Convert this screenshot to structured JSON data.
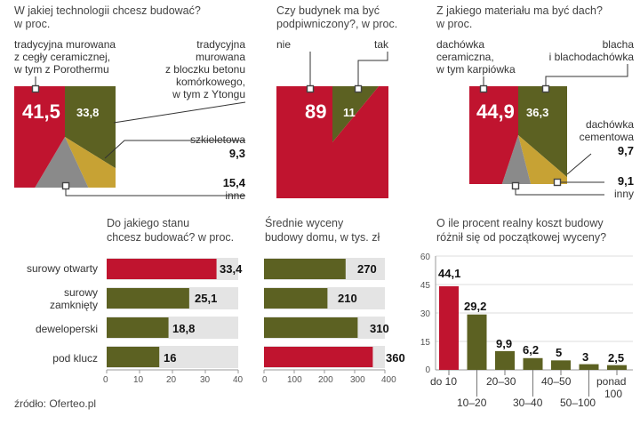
{
  "colors": {
    "red": "#c0142f",
    "olive": "#5c6122",
    "gold": "#c7a234",
    "gray": "#8a8a8a",
    "panel": "#e4e4e4",
    "line": "#333333"
  },
  "pie1": {
    "title": "W jakiej technologii chcesz budować? w proc.",
    "title_l1": "W jakiej technologii chcesz budować?",
    "title_l2": "w proc.",
    "cat1_l1": "tradycyjna murowana",
    "cat1_l2": "z cegły ceramicznej,",
    "cat1_l3": "w tym z Porothermu",
    "cat1_value": "41,5",
    "cat2_l1": "tradycyjna",
    "cat2_l2": "murowana",
    "cat2_l3": "z bloczku betonu",
    "cat2_l4": "komórkowego,",
    "cat2_l5": "w tym z Ytongu",
    "cat2_value": "33,8",
    "cat3_label": "szkieletowa",
    "cat3_value": "9,3",
    "cat4_value": "15,4",
    "cat4_label": "inne"
  },
  "pie2": {
    "title_l1": "Czy budynek ma być",
    "title_l2": "podpiwniczony?, w proc.",
    "no_label": "nie",
    "no_value": "89",
    "yes_label": "tak",
    "yes_value": "11"
  },
  "pie3": {
    "title_l1": "Z jakiego materiału ma być dach?",
    "title_l2": "w proc.",
    "cat1_l1": "dachówka",
    "cat1_l2": "ceramiczna,",
    "cat1_l3": "w tym karpiówka",
    "cat1_value": "44,9",
    "cat2_l1": "blacha",
    "cat2_l2": "i blachodachówka",
    "cat2_value": "36,3",
    "cat3_l1": "dachówka",
    "cat3_l2": "cementowa",
    "cat3_value": "9,7",
    "cat4_value": "9,1",
    "cat4_label": "inny"
  },
  "bars1": {
    "title_l1": "Do jakiego stanu",
    "title_l2": "chcesz budować? w proc.",
    "cat1": "surowy otwarty",
    "cat2_l1": "surowy",
    "cat2_l2": "zamknięty",
    "cat3": "deweloperski",
    "cat4": "pod klucz",
    "v1": "33,4",
    "v2": "25,1",
    "v3": "18,8",
    "v4": "16",
    "t0": "0",
    "t1": "10",
    "t2": "20",
    "t3": "30",
    "t4": "40"
  },
  "bars2": {
    "title_l1": "Średnie wyceny",
    "title_l2": "budowy domu, w tys. zł",
    "v1": "270",
    "v2": "210",
    "v3": "310",
    "v4": "360",
    "t0": "0",
    "t1": "100",
    "t2": "200",
    "t3": "300",
    "t4": "400"
  },
  "col": {
    "title_l1": "O ile procent realny koszt budowy",
    "title_l2": "różnił się od początkowej wyceny?",
    "y0": "0",
    "y15": "15",
    "y30": "30",
    "y45": "45",
    "y60": "60",
    "c1": "do 10",
    "c2": "10–20",
    "c3": "20–30",
    "c4": "30–40",
    "c5": "40–50",
    "c6": "50–100",
    "c7_l1": "ponad",
    "c7_l2": "100",
    "v1": "44,1",
    "v2": "29,2",
    "v3": "9,9",
    "v4": "6,2",
    "v5": "5",
    "v6": "3",
    "v7": "2,5"
  },
  "source": "źródło: Oferteo.pl",
  "chart_data": [
    {
      "type": "pie",
      "title": "W jakiej technologii chcesz budować? w proc.",
      "categories": [
        "tradycyjna murowana z cegły ceramicznej, w tym z Porothermu",
        "tradycyjna murowana z bloczku betonu komórkowego, w tym z Ytongu",
        "szkieletowa",
        "inne"
      ],
      "values": [
        41.5,
        33.8,
        9.3,
        15.4
      ],
      "colors": [
        "#c0142f",
        "#5c6122",
        "#c7a234",
        "#8a8a8a"
      ]
    },
    {
      "type": "pie",
      "title": "Czy budynek ma być podpiwniczony?, w proc.",
      "categories": [
        "nie",
        "tak"
      ],
      "values": [
        89,
        11
      ],
      "colors": [
        "#c0142f",
        "#5c6122"
      ]
    },
    {
      "type": "pie",
      "title": "Z jakiego materiału ma być dach? w proc.",
      "categories": [
        "dachówka ceramiczna, w tym karpiówka",
        "blacha i blachodachówka",
        "dachówka cementowa",
        "inny"
      ],
      "values": [
        44.9,
        36.3,
        9.7,
        9.1
      ],
      "colors": [
        "#c0142f",
        "#5c6122",
        "#c7a234",
        "#8a8a8a"
      ]
    },
    {
      "type": "bar",
      "orientation": "horizontal",
      "title": "Do jakiego stanu chcesz budować? w proc.",
      "categories": [
        "surowy otwarty",
        "surowy zamknięty",
        "deweloperski",
        "pod klucz"
      ],
      "values": [
        33.4,
        25.1,
        18.8,
        16
      ],
      "xlim": [
        0,
        40
      ],
      "xticks": [
        0,
        10,
        20,
        30,
        40
      ],
      "highlight": "surowy otwarty"
    },
    {
      "type": "bar",
      "orientation": "horizontal",
      "title": "Średnie wyceny budowy domu, w tys. zł",
      "categories": [
        "surowy otwarty",
        "surowy zamknięty",
        "deweloperski",
        "pod klucz"
      ],
      "values": [
        270,
        210,
        310,
        360
      ],
      "xlim": [
        0,
        400
      ],
      "xticks": [
        0,
        100,
        200,
        300,
        400
      ],
      "highlight": "pod klucz"
    },
    {
      "type": "bar",
      "title": "O ile procent realny koszt budowy różnił się od początkowej wyceny?",
      "categories": [
        "do 10",
        "10–20",
        "20–30",
        "30–40",
        "40–50",
        "50–100",
        "ponad 100"
      ],
      "values": [
        44.1,
        29.2,
        9.9,
        6.2,
        5,
        3,
        2.5
      ],
      "ylim": [
        0,
        60
      ],
      "yticks": [
        0,
        15,
        30,
        45,
        60
      ],
      "highlight": "do 10"
    }
  ]
}
